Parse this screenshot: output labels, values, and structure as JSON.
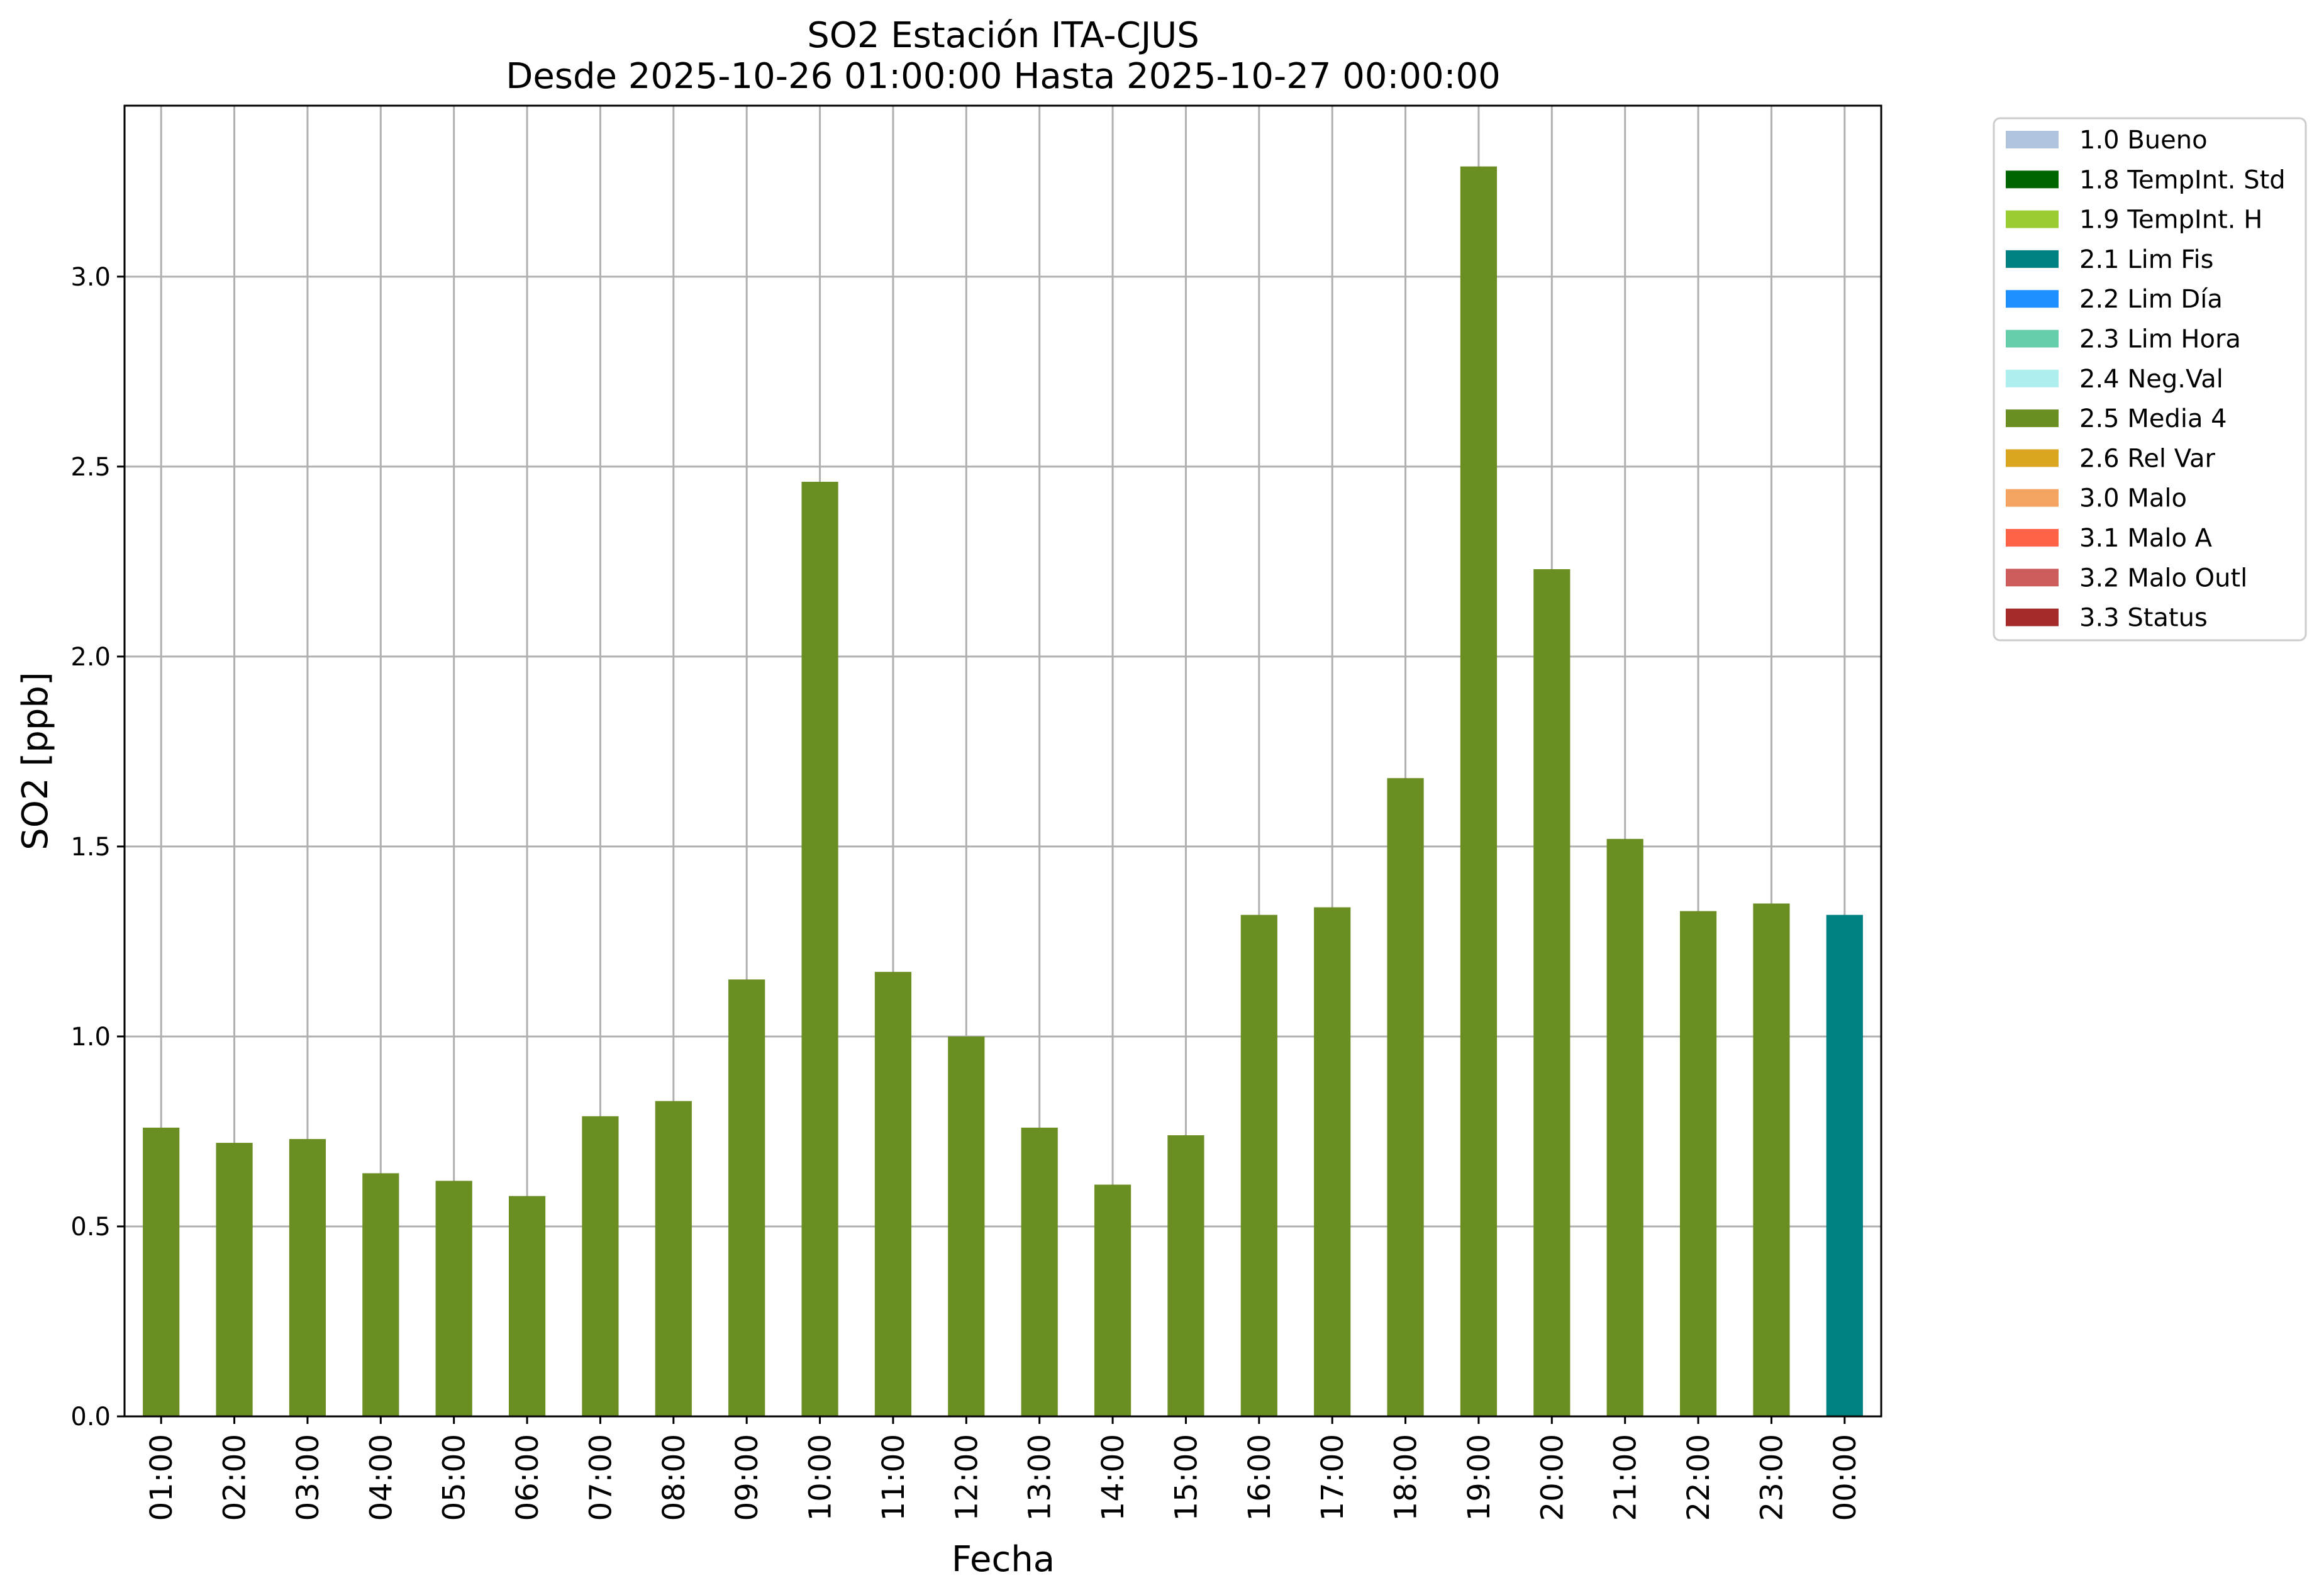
{
  "chart_data": {
    "type": "bar",
    "title": "SO2 Estación ITA-CJUS",
    "subtitle": "Desde 2025-10-26 01:00:00 Hasta 2025-10-27 00:00:00",
    "xlabel": "Fecha",
    "ylabel": "SO2 [ppb]",
    "ylim": [
      0,
      3.45
    ],
    "yticks": [
      "0.0",
      "0.5",
      "1.0",
      "1.5",
      "2.0",
      "2.5",
      "3.0"
    ],
    "grid": true,
    "legend_position": "outside-top-right",
    "categories": [
      "01:00",
      "02:00",
      "03:00",
      "04:00",
      "05:00",
      "06:00",
      "07:00",
      "08:00",
      "09:00",
      "10:00",
      "11:00",
      "12:00",
      "13:00",
      "14:00",
      "15:00",
      "16:00",
      "17:00",
      "18:00",
      "19:00",
      "20:00",
      "21:00",
      "22:00",
      "23:00",
      "00:00"
    ],
    "values": [
      0.76,
      0.72,
      0.73,
      0.64,
      0.62,
      0.58,
      0.79,
      0.83,
      1.15,
      2.46,
      1.17,
      1.0,
      0.76,
      0.61,
      0.74,
      1.32,
      1.34,
      1.68,
      3.29,
      2.23,
      1.52,
      1.33,
      1.35,
      1.32
    ],
    "flags": [
      "2.5 Media 4",
      "2.5 Media 4",
      "2.5 Media 4",
      "2.5 Media 4",
      "2.5 Media 4",
      "2.5 Media 4",
      "2.5 Media 4",
      "2.5 Media 4",
      "2.5 Media 4",
      "2.5 Media 4",
      "2.5 Media 4",
      "2.5 Media 4",
      "2.5 Media 4",
      "2.5 Media 4",
      "2.5 Media 4",
      "2.5 Media 4",
      "2.5 Media 4",
      "2.5 Media 4",
      "2.5 Media 4",
      "2.5 Media 4",
      "2.5 Media 4",
      "2.5 Media 4",
      "2.5 Media 4",
      "2.1 Lim Fis"
    ],
    "legend": [
      {
        "label": "1.0 Bueno",
        "color": "#b0c4de"
      },
      {
        "label": "1.8 TempInt. Std",
        "color": "#006400"
      },
      {
        "label": "1.9 TempInt. H",
        "color": "#9acd32"
      },
      {
        "label": "2.1 Lim Fis",
        "color": "#008080"
      },
      {
        "label": "2.2 Lim Día",
        "color": "#1e90ff"
      },
      {
        "label": "2.3 Lim Hora",
        "color": "#66cdaa"
      },
      {
        "label": "2.4 Neg.Val",
        "color": "#afeeee"
      },
      {
        "label": "2.5 Media 4",
        "color": "#6b8e23"
      },
      {
        "label": "2.6 Rel Var",
        "color": "#daa520"
      },
      {
        "label": "3.0 Malo",
        "color": "#f4a460"
      },
      {
        "label": "3.1 Malo A",
        "color": "#ff6347"
      },
      {
        "label": "3.2 Malo Outl",
        "color": "#cd5c5c"
      },
      {
        "label": "3.3 Status",
        "color": "#a52a2a"
      }
    ]
  }
}
